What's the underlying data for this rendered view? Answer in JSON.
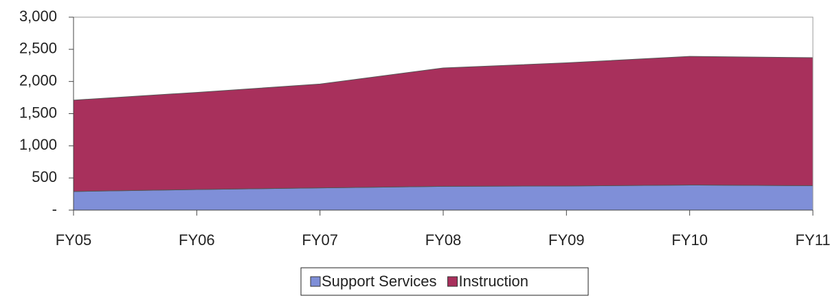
{
  "chart_data": {
    "type": "stacked_area",
    "categories": [
      "FY05",
      "FY06",
      "FY07",
      "FY08",
      "FY09",
      "FY10",
      "FY11"
    ],
    "series": [
      {
        "name": "Support Services",
        "color": "#7f8fd8",
        "values": [
          290,
          320,
          345,
          370,
          375,
          390,
          380
        ]
      },
      {
        "name": "Instruction",
        "color": "#a8305c",
        "values": [
          1420,
          1510,
          1615,
          1840,
          1915,
          2000,
          1990
        ]
      }
    ],
    "ylim": [
      0,
      3000
    ],
    "yticks": [
      {
        "value": 0,
        "label": "-"
      },
      500,
      {
        "value": 1000,
        "label": "1,000"
      },
      {
        "value": 1500,
        "label": "1,500"
      },
      {
        "value": 2000,
        "label": "2,000"
      },
      {
        "value": 2500,
        "label": "2,500"
      },
      {
        "value": 3000,
        "label": "3,000"
      }
    ],
    "legend": "bottom"
  }
}
